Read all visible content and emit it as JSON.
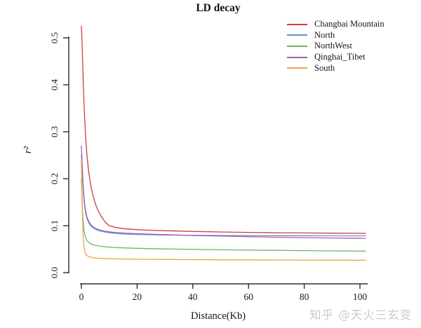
{
  "watermark": "知乎 @天火三玄变",
  "chart_data": {
    "type": "line",
    "title": "LD decay",
    "xlabel": "Distance(Kb)",
    "ylabel": "r²",
    "xlim": [
      0,
      100
    ],
    "ylim": [
      0,
      0.5
    ],
    "xticks": [
      "0",
      "20",
      "40",
      "60",
      "80",
      "100"
    ],
    "yticks": [
      "0.0",
      "0.1",
      "0.2",
      "0.3",
      "0.4",
      "0.5"
    ],
    "grid": false,
    "legend_position": "top-right",
    "axis_color": "#2e2e2e",
    "tick_label_color": "#1a1a1a",
    "series": [
      {
        "name": "Changbai Mountain",
        "color": "#d23b3e",
        "points": [
          [
            0,
            0.525
          ],
          [
            0.2,
            0.497
          ],
          [
            0.4,
            0.458
          ],
          [
            0.6,
            0.418
          ],
          [
            0.8,
            0.382
          ],
          [
            1,
            0.35
          ],
          [
            1.3,
            0.312
          ],
          [
            1.6,
            0.282
          ],
          [
            2,
            0.25
          ],
          [
            2.5,
            0.221
          ],
          [
            3,
            0.199
          ],
          [
            3.5,
            0.182
          ],
          [
            4,
            0.168
          ],
          [
            5,
            0.147
          ],
          [
            6,
            0.132
          ],
          [
            7,
            0.121
          ],
          [
            8,
            0.112
          ],
          [
            9,
            0.105
          ],
          [
            10,
            0.1
          ],
          [
            12,
            0.0965
          ],
          [
            15,
            0.0938
          ],
          [
            20,
            0.0915
          ],
          [
            25,
            0.0902
          ],
          [
            30,
            0.0893
          ],
          [
            40,
            0.0878
          ],
          [
            50,
            0.0866
          ],
          [
            60,
            0.0857
          ],
          [
            70,
            0.085
          ],
          [
            80,
            0.0845
          ],
          [
            90,
            0.084
          ],
          [
            100,
            0.0837
          ],
          [
            102,
            0.0836
          ]
        ]
      },
      {
        "name": "North",
        "color": "#6b8fc2",
        "points": [
          [
            0,
            0.25
          ],
          [
            0.2,
            0.226
          ],
          [
            0.4,
            0.203
          ],
          [
            0.6,
            0.183
          ],
          [
            0.8,
            0.166
          ],
          [
            1,
            0.151
          ],
          [
            1.3,
            0.136
          ],
          [
            1.6,
            0.126
          ],
          [
            2,
            0.116
          ],
          [
            2.5,
            0.108
          ],
          [
            3,
            0.1025
          ],
          [
            3.5,
            0.099
          ],
          [
            4,
            0.0962
          ],
          [
            5,
            0.0925
          ],
          [
            6,
            0.09
          ],
          [
            7,
            0.0883
          ],
          [
            8,
            0.087
          ],
          [
            10,
            0.085
          ],
          [
            12,
            0.0837
          ],
          [
            15,
            0.0824
          ],
          [
            20,
            0.0812
          ],
          [
            25,
            0.0806
          ],
          [
            30,
            0.0801
          ],
          [
            40,
            0.0795
          ],
          [
            50,
            0.0791
          ],
          [
            60,
            0.0789
          ],
          [
            70,
            0.0787
          ],
          [
            80,
            0.0786
          ],
          [
            90,
            0.0784
          ],
          [
            100,
            0.0783
          ],
          [
            102,
            0.0783
          ]
        ]
      },
      {
        "name": "NorthWest",
        "color": "#6fb468",
        "points": [
          [
            0,
            0.2
          ],
          [
            0.2,
            0.162
          ],
          [
            0.4,
            0.131
          ],
          [
            0.6,
            0.11
          ],
          [
            0.8,
            0.0965
          ],
          [
            1,
            0.0875
          ],
          [
            1.3,
            0.079
          ],
          [
            1.6,
            0.0738
          ],
          [
            2,
            0.069
          ],
          [
            2.5,
            0.0652
          ],
          [
            3,
            0.0628
          ],
          [
            3.5,
            0.0612
          ],
          [
            4,
            0.0599
          ],
          [
            5,
            0.0582
          ],
          [
            6,
            0.057
          ],
          [
            7,
            0.0561
          ],
          [
            8,
            0.0554
          ],
          [
            10,
            0.0543
          ],
          [
            12,
            0.0535
          ],
          [
            15,
            0.0527
          ],
          [
            20,
            0.0518
          ],
          [
            25,
            0.0511
          ],
          [
            30,
            0.0505
          ],
          [
            40,
            0.0495
          ],
          [
            50,
            0.0487
          ],
          [
            60,
            0.048
          ],
          [
            70,
            0.0474
          ],
          [
            80,
            0.0468
          ],
          [
            90,
            0.0463
          ],
          [
            100,
            0.0458
          ],
          [
            102,
            0.0457
          ]
        ]
      },
      {
        "name": "Qinghai_Tibet",
        "color": "#9a63bf",
        "points": [
          [
            0,
            0.27
          ],
          [
            0.2,
            0.242
          ],
          [
            0.4,
            0.215
          ],
          [
            0.6,
            0.192
          ],
          [
            0.8,
            0.172
          ],
          [
            1,
            0.156
          ],
          [
            1.3,
            0.14
          ],
          [
            1.6,
            0.129
          ],
          [
            2,
            0.119
          ],
          [
            2.5,
            0.111
          ],
          [
            3,
            0.1055
          ],
          [
            3.5,
            0.1015
          ],
          [
            4,
            0.0985
          ],
          [
            5,
            0.0945
          ],
          [
            6,
            0.092
          ],
          [
            7,
            0.0902
          ],
          [
            8,
            0.0888
          ],
          [
            10,
            0.0868
          ],
          [
            12,
            0.0855
          ],
          [
            15,
            0.0843
          ],
          [
            20,
            0.083
          ],
          [
            25,
            0.0819
          ],
          [
            30,
            0.0809
          ],
          [
            40,
            0.0791
          ],
          [
            50,
            0.0777
          ],
          [
            60,
            0.0765
          ],
          [
            70,
            0.0754
          ],
          [
            80,
            0.0745
          ],
          [
            90,
            0.0737
          ],
          [
            100,
            0.0731
          ],
          [
            102,
            0.073
          ]
        ]
      },
      {
        "name": "South",
        "color": "#efa23f",
        "points": [
          [
            0,
            0.24
          ],
          [
            0.2,
            0.172
          ],
          [
            0.4,
            0.117
          ],
          [
            0.6,
            0.082
          ],
          [
            0.8,
            0.0625
          ],
          [
            1,
            0.0515
          ],
          [
            1.3,
            0.0435
          ],
          [
            1.6,
            0.0395
          ],
          [
            2,
            0.0366
          ],
          [
            2.5,
            0.0346
          ],
          [
            3,
            0.0334
          ],
          [
            3.5,
            0.0326
          ],
          [
            4,
            0.032
          ],
          [
            5,
            0.0312
          ],
          [
            6,
            0.0307
          ],
          [
            7,
            0.0303
          ],
          [
            8,
            0.03
          ],
          [
            10,
            0.0296
          ],
          [
            12,
            0.0293
          ],
          [
            15,
            0.0289
          ],
          [
            20,
            0.0285
          ],
          [
            25,
            0.0282
          ],
          [
            30,
            0.028
          ],
          [
            40,
            0.0276
          ],
          [
            50,
            0.0273
          ],
          [
            60,
            0.0271
          ],
          [
            70,
            0.0269
          ],
          [
            80,
            0.0267
          ],
          [
            90,
            0.0265
          ],
          [
            100,
            0.0264
          ],
          [
            102,
            0.0263
          ]
        ]
      }
    ]
  }
}
